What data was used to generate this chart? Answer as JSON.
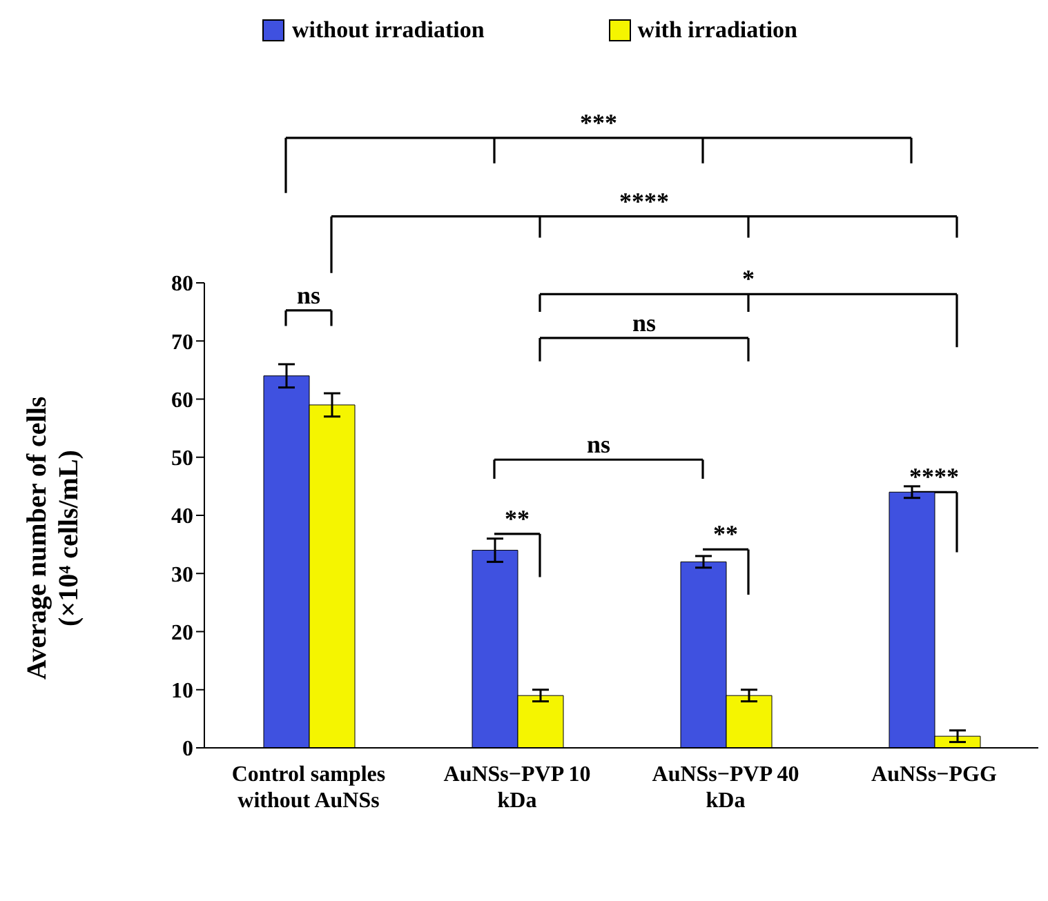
{
  "chart_data": {
    "type": "bar",
    "ylabel": "Average number of cells (×10⁴ cells/mL)",
    "categories": [
      "Control samples without AuNSs",
      "AuNSs−PVP 10 kDa",
      "AuNSs−PVP 40 kDa",
      "AuNSs−PGG"
    ],
    "series": [
      {
        "name": "without irradiation",
        "color": "#3f51e0",
        "values": [
          64,
          34,
          32,
          44
        ],
        "errors": [
          2,
          2,
          1,
          1
        ]
      },
      {
        "name": "with irradiation",
        "color": "#f5f500",
        "values": [
          59,
          9,
          9,
          2
        ],
        "errors": [
          2,
          1,
          1,
          1
        ]
      }
    ],
    "ylim": [
      0,
      80
    ],
    "yticks": [
      0,
      10,
      20,
      30,
      40,
      50,
      60,
      70,
      80
    ],
    "grid": false,
    "legend": "top",
    "annotations": [
      "***",
      "****",
      "*",
      "ns",
      "ns",
      "ns",
      "**",
      "**",
      "****"
    ]
  }
}
